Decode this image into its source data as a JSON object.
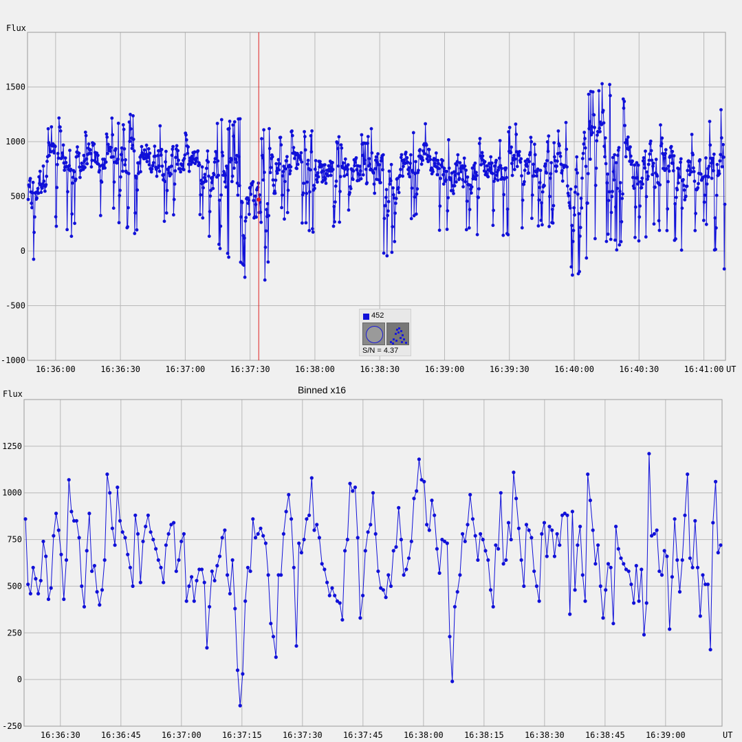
{
  "chart_data": [
    {
      "type": "line",
      "title": "",
      "ylabel": "Flux",
      "xlabel": "UT",
      "ylim": [
        -1000,
        2000
      ],
      "yticks": [
        "1500",
        "1000",
        "500",
        "0",
        "-500",
        "-1000"
      ],
      "yticks_values": [
        1500,
        1000,
        500,
        0,
        -500,
        -1000
      ],
      "xticks": [
        "16:36:00",
        "16:36:30",
        "16:37:00",
        "16:37:30",
        "16:38:00",
        "16:38:30",
        "16:39:00",
        "16:39:30",
        "16:40:00",
        "16:40:30",
        "16:41:00"
      ],
      "xlim_seconds": [
        "16:35:47",
        "16:41:10"
      ],
      "grid": true,
      "marker_color": "#1010d8",
      "cursor_time": "16:37:34",
      "series": [
        {
          "sampling": "dense ~0.25 s cadence, roughly 1300 points; values fluctuate mostly 300–1100 with spikes to ~1500 and dips to ~-450",
          "envelope_max": [
            900,
            1200,
            1320,
            1060,
            1240,
            1270,
            1200,
            1160,
            1060,
            1230,
            1220,
            1120,
            1130,
            1200,
            1110,
            1030,
            1080,
            1310,
            1100,
            1180,
            1100,
            1080,
            1100,
            1180,
            1080,
            1070,
            1450,
            1530,
            1530,
            1250,
            1240,
            1130,
            1220,
            1440
          ],
          "envelope_min": [
            -260,
            240,
            110,
            290,
            280,
            150,
            260,
            250,
            320,
            -30,
            -150,
            -500,
            300,
            210,
            100,
            300,
            110,
            -120,
            250,
            320,
            50,
            130,
            200,
            50,
            230,
            140,
            -340,
            100,
            -30,
            100,
            180,
            -50,
            200,
            -260
          ]
        }
      ]
    },
    {
      "type": "line",
      "title": "Binned x16",
      "ylabel": "Flux",
      "xlabel": "UT",
      "ylim": [
        -250,
        1500
      ],
      "yticks": [
        "1250",
        "1000",
        "750",
        "500",
        "250",
        "0",
        "-250"
      ],
      "yticks_values": [
        1250,
        1000,
        750,
        500,
        250,
        0,
        -250
      ],
      "xticks": [
        "16:36:30",
        "16:36:45",
        "16:37:00",
        "16:37:15",
        "16:37:30",
        "16:37:45",
        "16:38:00",
        "16:38:15",
        "16:38:30",
        "16:38:45",
        "16:39:00"
      ],
      "xlim_seconds": [
        "16:36:21",
        "16:39:14"
      ],
      "grid": true,
      "marker_color": "#1010d8",
      "series": [
        {
          "values": [
            860,
            510,
            460,
            600,
            540,
            460,
            530,
            740,
            660,
            430,
            490,
            770,
            890,
            800,
            670,
            430,
            640,
            1070,
            900,
            850,
            850,
            760,
            500,
            390,
            690,
            890,
            580,
            610,
            470,
            400,
            480,
            640,
            1100,
            1000,
            810,
            720,
            1030,
            850,
            790,
            760,
            670,
            600,
            500,
            880,
            780,
            520,
            740,
            820,
            880,
            790,
            750,
            700,
            640,
            600,
            520,
            720,
            780,
            830,
            840,
            580,
            640,
            740,
            780,
            420,
            500,
            550,
            420,
            530,
            590,
            590,
            520,
            170,
            390,
            580,
            530,
            610,
            660,
            760,
            800,
            560,
            460,
            640,
            380,
            50,
            -140,
            30,
            420,
            600,
            580,
            860,
            760,
            780,
            810,
            770,
            730,
            560,
            300,
            230,
            120,
            560,
            560,
            780,
            900,
            990,
            860,
            600,
            180,
            730,
            680,
            750,
            860,
            880,
            1080,
            800,
            830,
            760,
            620,
            590,
            520,
            450,
            490,
            450,
            420,
            410,
            320,
            690,
            750,
            1050,
            1010,
            1030,
            760,
            330,
            450,
            690,
            790,
            830,
            1000,
            780,
            580,
            490,
            480,
            440,
            560,
            500,
            690,
            710,
            920,
            750,
            560,
            590,
            650,
            740,
            970,
            1010,
            1180,
            1070,
            1060,
            830,
            800,
            960,
            880,
            700,
            570,
            750,
            740,
            730,
            230,
            -10,
            390,
            470,
            560,
            780,
            740,
            830,
            990,
            860,
            770,
            640,
            780,
            750,
            690,
            640,
            480,
            390,
            720,
            700,
            1000,
            620,
            640,
            840,
            750,
            1110,
            970,
            810,
            640,
            500,
            830,
            800,
            760,
            580,
            500,
            420,
            780,
            840,
            660,
            820,
            800,
            660,
            780,
            720,
            880,
            890,
            880,
            350,
            900,
            480,
            720,
            820,
            560,
            420,
            1100,
            960,
            800,
            620,
            720,
            500,
            330,
            480,
            620,
            600,
            300,
            820,
            700,
            650,
            620,
            590,
            580,
            510,
            410,
            610,
            420,
            590,
            240,
            410,
            1210,
            770,
            780,
            800,
            580,
            560,
            690,
            660,
            270,
            550,
            860,
            640,
            470,
            640,
            880,
            1100,
            650,
            600,
            850,
            600,
            340,
            560,
            510,
            510,
            160,
            840,
            1060,
            680,
            720
          ]
        }
      ]
    }
  ],
  "panel1_labels": {
    "y_title": "Flux",
    "x_unit": "UT"
  },
  "panel2_labels": {
    "title": "Binned x16",
    "y_title": "Flux",
    "x_unit": "UT"
  },
  "star_box": {
    "id": "452",
    "sn_text": "S/N =  4.37",
    "color": "#1010d8"
  }
}
